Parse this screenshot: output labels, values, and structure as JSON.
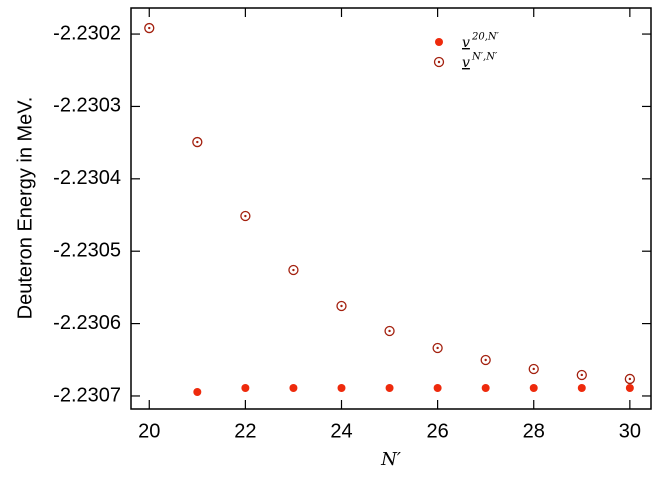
{
  "chart_data": {
    "type": "scatter",
    "ylabel": "Deuteron Energy in MeV.",
    "xlabel": "N′",
    "xlim": [
      19.62,
      30.44
    ],
    "ylim": [
      -2.230718,
      -2.230164
    ],
    "xticks": [
      20,
      22,
      24,
      26,
      28,
      30
    ],
    "yticks": [
      -2.2302,
      -2.2303,
      -2.2304,
      -2.2305,
      -2.2306,
      -2.2307
    ],
    "legend": "upper right",
    "series": [
      {
        "name": "v",
        "name_superscript": "20,N′",
        "color": "#ee2a0c",
        "marker": "filled",
        "x": [
          21,
          22,
          23,
          24,
          25,
          26,
          27,
          28,
          29,
          30
        ],
        "values": [
          -2.2306945,
          -2.230689,
          -2.230689,
          -2.230689,
          -2.230689,
          -2.230689,
          -2.230689,
          -2.230689,
          -2.230689,
          -2.230689
        ]
      },
      {
        "name": "v",
        "name_superscript": "N′,N′",
        "color": "#a3200e",
        "marker": "dotted-circle",
        "x": [
          20,
          21,
          22,
          23,
          24,
          25,
          26,
          27,
          28,
          29,
          30
        ],
        "values": [
          -2.2301917,
          -2.2303492,
          -2.2304514,
          -2.230526,
          -2.2305757,
          -2.2306102,
          -2.2306337,
          -2.2306503,
          -2.2306627,
          -2.230671,
          -2.2306765
        ]
      }
    ]
  }
}
